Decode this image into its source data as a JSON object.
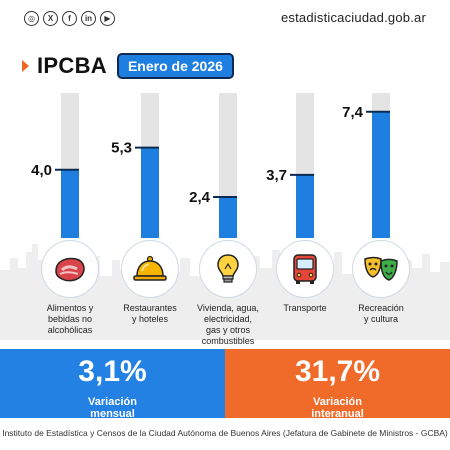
{
  "header": {
    "site": "estadisticaciudad.gob.ar",
    "title": "IPCBA",
    "period_badge": "Enero de 2026",
    "social_icons": [
      "instagram-icon",
      "x-icon",
      "facebook-icon",
      "linkedin-icon",
      "youtube-icon"
    ]
  },
  "chart_data": {
    "type": "bar",
    "categories": [
      "Alimentos y bebidas no alcohólicas",
      "Restaurantes y hoteles",
      "Vivienda, agua, electricidad, gas y otros combustibles",
      "Transporte",
      "Recreación y cultura"
    ],
    "category_lines": [
      [
        "Alimentos y",
        "bebidas no",
        "alcohólicas"
      ],
      [
        "Restaurantes",
        "y hoteles"
      ],
      [
        "Vivienda, agua,",
        "electricidad,",
        "gas y otros",
        "combustibles"
      ],
      [
        "Transporte"
      ],
      [
        "Recreación",
        "y cultura"
      ]
    ],
    "values": [
      4.0,
      5.3,
      2.4,
      3.7,
      7.4
    ],
    "value_labels": [
      "4,0",
      "5,3",
      "2,4",
      "3,7",
      "7,4"
    ],
    "icons": [
      "meat-icon",
      "cloche-icon",
      "lightbulb-icon",
      "bus-icon",
      "theater-masks-icon"
    ],
    "ylim": [
      0,
      8.5
    ],
    "title": "",
    "xlabel": "",
    "ylabel": "",
    "colors": {
      "bar": "#1f7fe0",
      "track": "#e4e4e4",
      "outline": "#0d2b52"
    }
  },
  "summary": {
    "monthly_value": "3,1%",
    "monthly_label": [
      "Variación",
      "mensual"
    ],
    "annual_value": "31,7%",
    "annual_label": [
      "Variación",
      "interanual"
    ],
    "colors": {
      "monthly": "#2381e3",
      "annual": "#f06a2a"
    }
  },
  "footer": {
    "credit": "Instituto de Estadística y Censos de la Ciudad Autónoma de Buenos Aires (Jefatura de Gabinete de Ministros - GCBA)"
  }
}
